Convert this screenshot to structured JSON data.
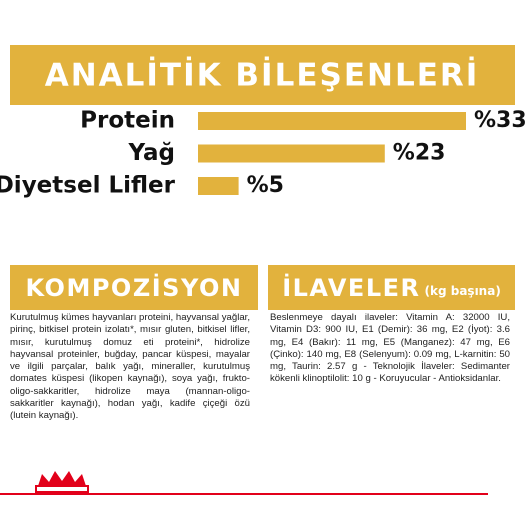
{
  "chart_data": {
    "type": "bar",
    "orientation": "horizontal",
    "title": "ANALİTİK BİLEŞENLERİ",
    "categories": [
      "Protein",
      "Yağ",
      "Diyetsel Lifler"
    ],
    "values": [
      33,
      23,
      5
    ],
    "value_labels": [
      "%33",
      "%23",
      "%5"
    ],
    "color": "#e2b23d"
  },
  "composition": {
    "title": "KOMPOZİSYON",
    "text": "Kurutulmuş kümes hayvanları proteini, hayvansal yağlar, pirinç, bitkisel protein izolatı*, mısır gluten, bitkisel lifler, mısır, kurutulmuş domuz eti proteini*, hidrolize hayvansal proteinler, buğday, pancar küspesi, mayalar ve ilgili parçalar, balık yağı, mineraller, kurutulmuş domates küspesi (likopen kaynağı), soya yağı, frukto-oligo-sakkaritler, hidrolize maya (mannan-oligo-sakkaritler kaynağı), hodan yağı, kadife çiçeği özü (lutein kaynağı)."
  },
  "additives": {
    "title": "İLAVELER",
    "subtitle": "(kg başına)",
    "text": "Beslenmeye dayalı ilaveler: Vitamin A: 32000 IU, Vitamin D3: 900 IU, E1 (Demir): 36 mg, E2 (İyot): 3.6 mg, E4 (Bakır): 11 mg, E5 (Manganez): 47 mg, E6 (Çinko): 140 mg, E8 (Selenyum): 0.09 mg, L-karnitin: 50 mg, Taurin: 2.57 g - Teknolojik İlaveler: Sedimanter kökenli klinoptilolit: 10 g - Koruyucular - Antioksidanlar."
  }
}
